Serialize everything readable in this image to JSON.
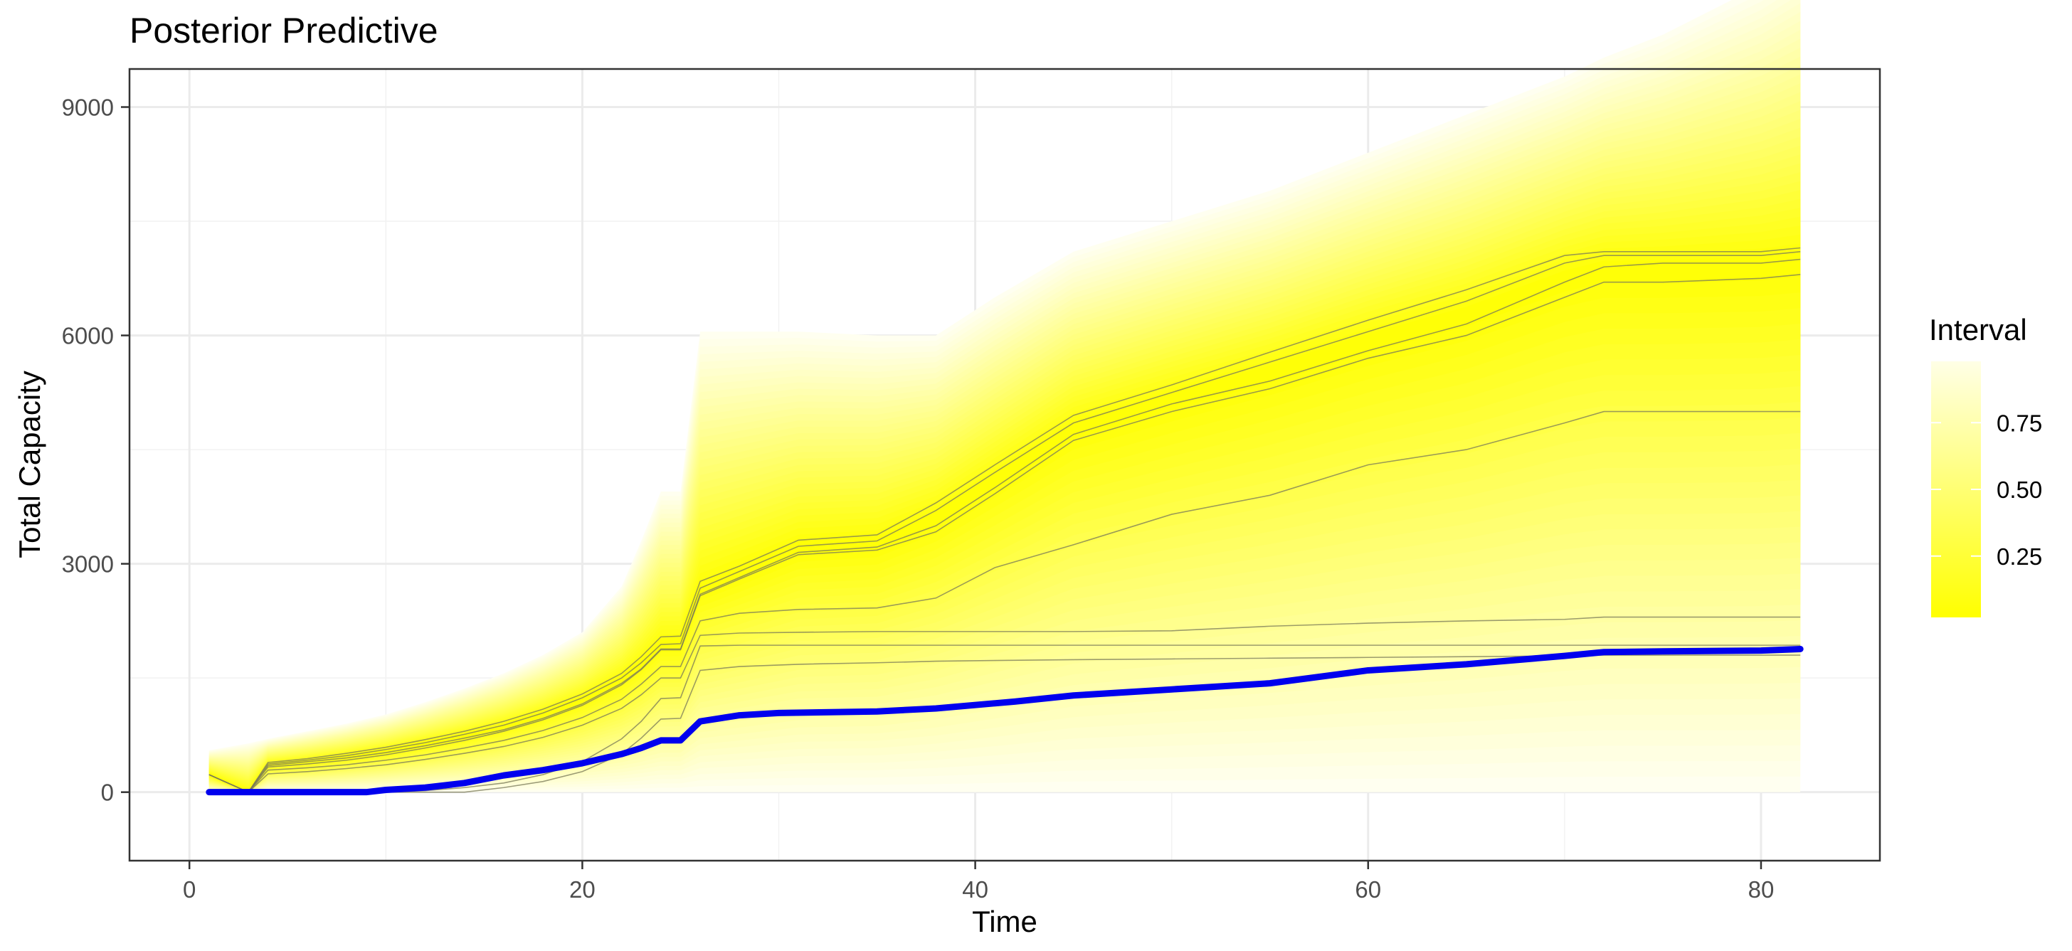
{
  "chart_data": {
    "type": "area",
    "title": "Posterior Predictive",
    "xlabel": "Time",
    "ylabel": "Total Capacity",
    "xlim": [
      -3.05,
      86.05
    ],
    "ylim": [
      -900,
      9500
    ],
    "x_ticks": [
      0,
      20,
      40,
      60,
      80
    ],
    "x_tick_labels": [
      "0",
      "20",
      "40",
      "60",
      "80"
    ],
    "y_ticks": [
      0,
      3000,
      6000,
      9000
    ],
    "y_tick_labels": [
      "0",
      "3000",
      "6000",
      "9000"
    ],
    "grid": true,
    "legend": {
      "title": "Interval",
      "position": "right",
      "labels": [
        "0.75",
        "0.50",
        "0.25"
      ],
      "label_values": [
        0.75,
        0.5,
        0.25
      ],
      "range": [
        0.02,
        0.98
      ],
      "low_color": "#ffff00",
      "high_color": "#ffffe6"
    },
    "band_colors": {
      "inner": "#ffff00",
      "outer": "#fffff0"
    },
    "x": [
      1,
      3,
      4,
      6,
      8,
      10,
      12,
      14,
      16,
      18,
      20,
      22,
      23,
      24,
      25,
      26,
      28,
      31,
      35,
      38,
      41,
      45,
      50,
      55,
      60,
      65,
      70,
      72,
      75,
      80,
      82
    ],
    "bounds": {
      "upper": [
        550,
        640,
        700,
        800,
        900,
        1020,
        1180,
        1360,
        1560,
        1800,
        2100,
        2700,
        3300,
        3950,
        3950,
        6050,
        6050,
        6050,
        6000,
        6000,
        6500,
        7100,
        7500,
        7900,
        8400,
        8900,
        9400,
        9650,
        9950,
        10600,
        10950
      ],
      "lower": [
        0,
        0,
        0,
        0,
        0,
        0,
        0,
        0,
        0,
        0,
        0,
        0,
        0,
        0,
        0,
        0,
        0,
        0,
        0,
        0,
        0,
        0,
        0,
        0,
        0,
        0,
        0,
        0,
        0,
        0,
        0
      ]
    },
    "series": [
      {
        "values": [
          230,
          0,
          370,
          420,
          480,
          560,
          650,
          760,
          880,
          1040,
          1240,
          1500,
          1700,
          1940,
          1950,
          2680,
          2900,
          3230,
          3300,
          3700,
          4200,
          4850,
          5250,
          5650,
          6050,
          6450,
          6950,
          7050,
          7050,
          7050,
          7100
        ]
      },
      {
        "values": [
          230,
          0,
          390,
          440,
          510,
          590,
          690,
          800,
          930,
          1090,
          1290,
          1560,
          1780,
          2040,
          2050,
          2770,
          2970,
          3310,
          3380,
          3800,
          4300,
          4950,
          5350,
          5780,
          6200,
          6600,
          7050,
          7100,
          7100,
          7100,
          7150
        ]
      },
      {
        "values": [
          230,
          0,
          350,
          400,
          450,
          520,
          610,
          710,
          820,
          970,
          1160,
          1430,
          1620,
          1880,
          1880,
          2600,
          2820,
          3150,
          3220,
          3500,
          4000,
          4700,
          5100,
          5400,
          5800,
          6150,
          6700,
          6900,
          6950,
          6950,
          7000
        ]
      },
      {
        "values": [
          230,
          0,
          330,
          370,
          420,
          490,
          580,
          680,
          800,
          950,
          1140,
          1410,
          1610,
          1870,
          1870,
          2580,
          2800,
          3120,
          3180,
          3420,
          3920,
          4620,
          5000,
          5300,
          5700,
          6000,
          6500,
          6700,
          6700,
          6750,
          6800
        ]
      },
      {
        "values": [
          0,
          0,
          290,
          320,
          360,
          420,
          490,
          580,
          680,
          810,
          980,
          1220,
          1420,
          1650,
          1650,
          2250,
          2350,
          2400,
          2420,
          2550,
          2950,
          3250,
          3650,
          3900,
          4300,
          4500,
          4850,
          5000,
          5000,
          5000,
          5000
        ]
      },
      {
        "values": [
          0,
          0,
          240,
          270,
          310,
          360,
          430,
          510,
          600,
          720,
          880,
          1100,
          1280,
          1500,
          1500,
          2060,
          2090,
          2100,
          2110,
          2110,
          2110,
          2110,
          2120,
          2180,
          2220,
          2250,
          2270,
          2300,
          2300,
          2300,
          2300
        ]
      },
      {
        "values": [
          0,
          0,
          0,
          0,
          0,
          0,
          20,
          60,
          120,
          230,
          400,
          700,
          930,
          1230,
          1240,
          1920,
          1930,
          1930,
          1930,
          1930,
          1930,
          1930,
          1930,
          1930,
          1930,
          1930,
          1930,
          1930,
          1930,
          1930,
          1930
        ]
      },
      {
        "values": [
          0,
          0,
          0,
          0,
          0,
          0,
          0,
          0,
          60,
          140,
          270,
          500,
          710,
          960,
          970,
          1600,
          1650,
          1680,
          1700,
          1720,
          1730,
          1740,
          1750,
          1760,
          1770,
          1780,
          1790,
          1800,
          1800,
          1800,
          1800
        ]
      }
    ],
    "observed": {
      "x": [
        1,
        3,
        5,
        7,
        9,
        10,
        12,
        14,
        16,
        18,
        20,
        22,
        23,
        24,
        25,
        26,
        28,
        30,
        35,
        38,
        42,
        45,
        50,
        55,
        60,
        65,
        70,
        72,
        75,
        80,
        82
      ],
      "values": [
        0,
        0,
        0,
        0,
        0,
        30,
        60,
        120,
        220,
        290,
        380,
        500,
        580,
        680,
        680,
        930,
        1010,
        1040,
        1060,
        1100,
        1190,
        1270,
        1350,
        1430,
        1600,
        1680,
        1790,
        1840,
        1850,
        1860,
        1880
      ],
      "color": "#0000ee"
    }
  }
}
